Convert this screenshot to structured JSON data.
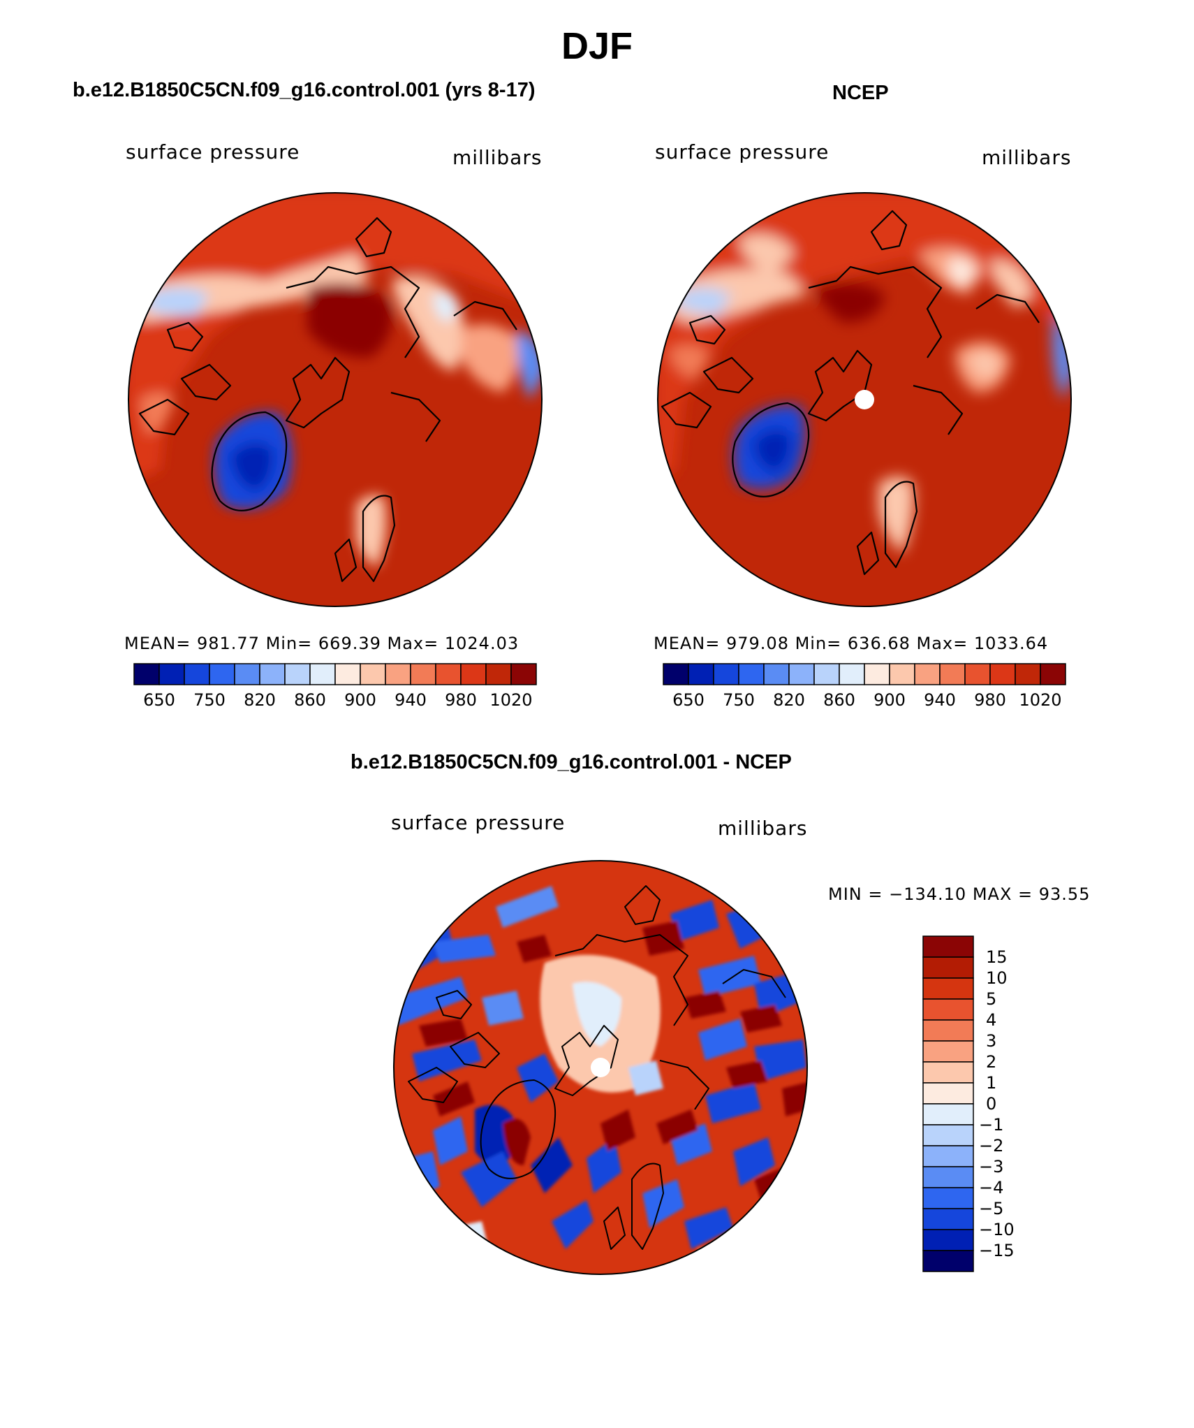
{
  "title": "DJF",
  "colors": {
    "sp_scale": [
      "#00006b",
      "#0020b4",
      "#1546dc",
      "#2e66f0",
      "#5a8cf4",
      "#8cb2fa",
      "#b9d3fb",
      "#e1eefb",
      "#fdebe0",
      "#fcc8ad",
      "#f9a281",
      "#f27b56",
      "#e8532f",
      "#dc3717",
      "#c02708",
      "#8b0505"
    ],
    "diff_scale": [
      "#8b0505",
      "#b31c04",
      "#d53510",
      "#e8532f",
      "#f27b56",
      "#f9a281",
      "#fcc8ad",
      "#fdebe0",
      "#e1eefb",
      "#b9d3fb",
      "#8cb2fa",
      "#5a8cf4",
      "#2e66f0",
      "#1546dc",
      "#0020b4",
      "#00006b"
    ]
  },
  "panels": {
    "model": {
      "title": "b.e12.B1850C5CN.f09_g16.control.001 (yrs 8-17)",
      "variable": "surface pressure",
      "units": "millibars",
      "stats": "MEAN= 981.77  Min= 669.39  Max= 1024.03",
      "colorbar_ticks": [
        "650",
        "750",
        "820",
        "860",
        "900",
        "940",
        "980",
        "1020"
      ]
    },
    "obs": {
      "title": "NCEP",
      "variable": "surface pressure",
      "units": "millibars",
      "stats": "MEAN= 979.08  Min= 636.68  Max= 1033.64",
      "colorbar_ticks": [
        "650",
        "750",
        "820",
        "860",
        "900",
        "940",
        "980",
        "1020"
      ]
    },
    "diff": {
      "title": "b.e12.B1850C5CN.f09_g16.control.001 - NCEP",
      "variable": "surface pressure",
      "units": "millibars",
      "minmax": "MIN = −134.10 MAX =   93.55",
      "colorbar_ticks": [
        "15",
        "10",
        "5",
        "4",
        "3",
        "2",
        "1",
        "0",
        "−1",
        "−2",
        "−3",
        "−4",
        "−5",
        "−10",
        "−15"
      ]
    }
  }
}
